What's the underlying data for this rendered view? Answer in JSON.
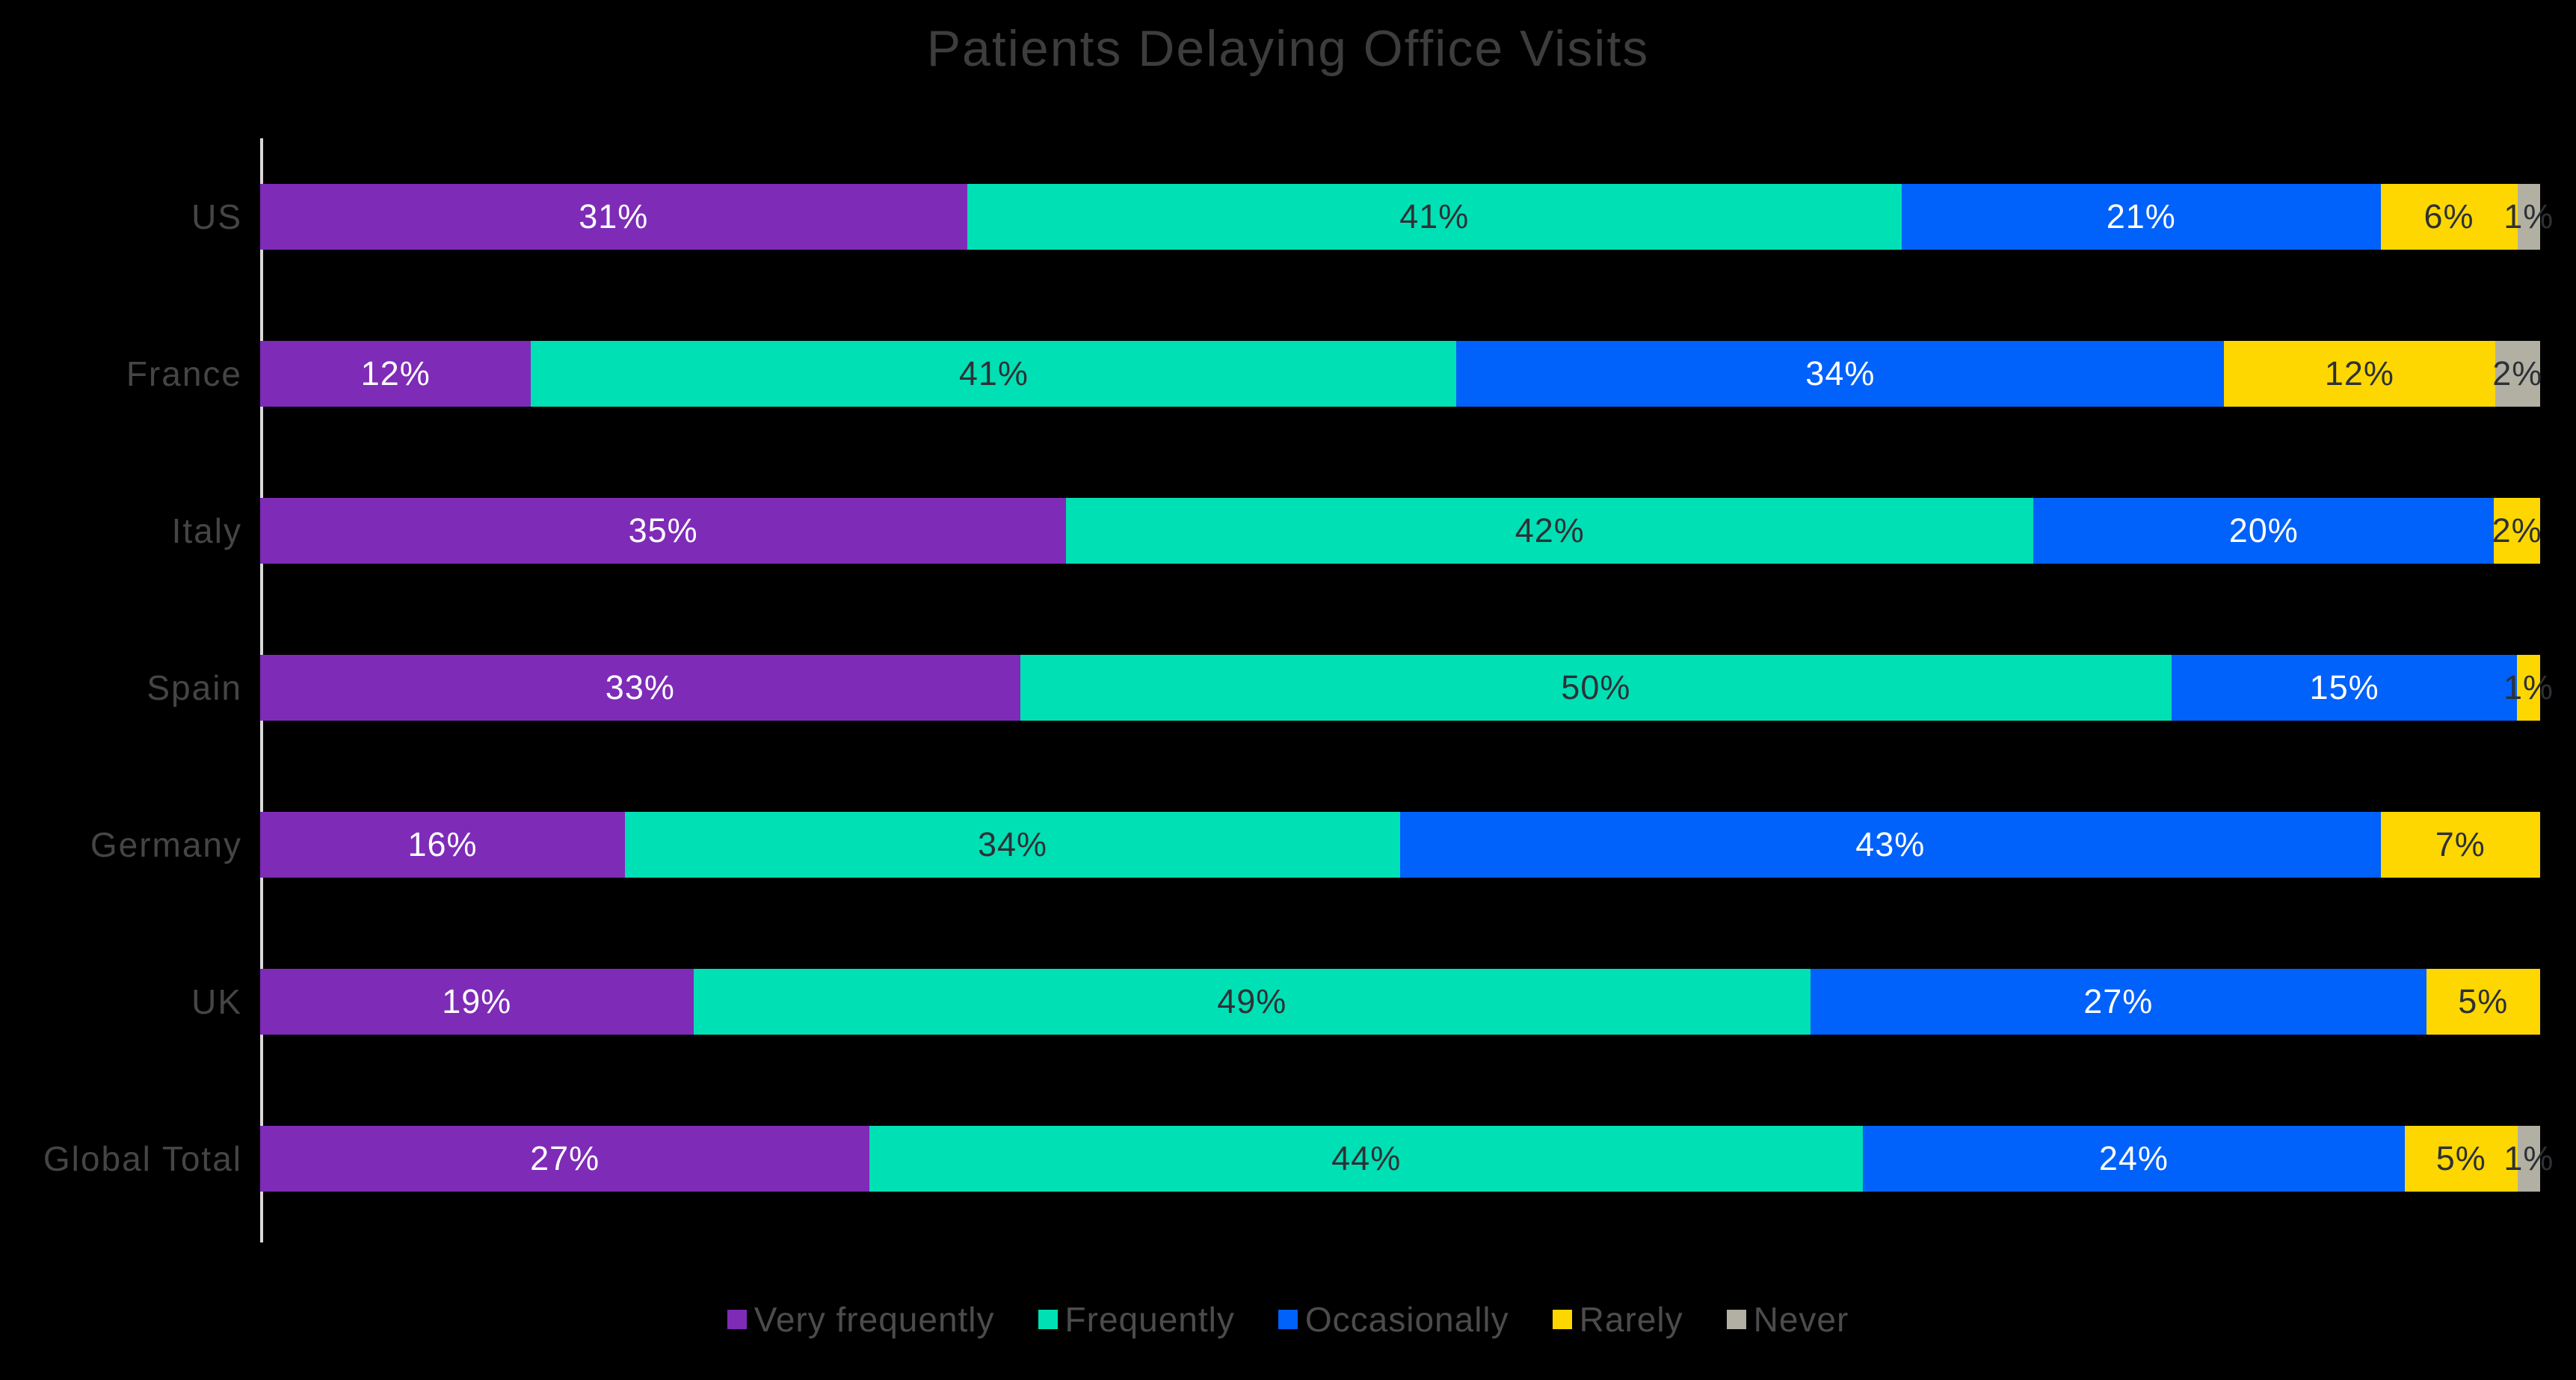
{
  "title": "Patients Delaying Office Visits",
  "background_color": "#000000",
  "title_color": "#3d3d3d",
  "axis_line_color": "#d9d9d9",
  "category_label_color": "#454545",
  "legend_label_color": "#4c4c4c",
  "chart_data": {
    "type": "bar",
    "stacked": true,
    "orientation": "horizontal",
    "normalized_100_percent": true,
    "unit": "%",
    "grid": false,
    "legend_position": "bottom",
    "value_label_format": "{value}%",
    "categories": [
      "US",
      "France",
      "Italy",
      "Spain",
      "Germany",
      "UK",
      "Global Total"
    ],
    "series": [
      {
        "name": "Very frequently",
        "color": "#7e2bb8",
        "label_color": "#ffffff",
        "values": [
          31,
          12,
          35,
          33,
          16,
          19,
          27
        ]
      },
      {
        "name": "Frequently",
        "color": "#00e0b5",
        "label_color": "#2d3136",
        "values": [
          41,
          41,
          42,
          50,
          34,
          49,
          44
        ]
      },
      {
        "name": "Occasionally",
        "color": "#0061fb",
        "label_color": "#ffffff",
        "values": [
          21,
          34,
          20,
          15,
          43,
          27,
          24
        ]
      },
      {
        "name": "Rarely",
        "color": "#ffd700",
        "label_color": "#2d3136",
        "values": [
          6,
          12,
          2,
          1,
          7,
          5,
          5
        ]
      },
      {
        "name": "Never",
        "color": "#b2afa3",
        "label_color": "#2d3136",
        "values": [
          1,
          2,
          0,
          0,
          0,
          0,
          1
        ]
      }
    ]
  }
}
